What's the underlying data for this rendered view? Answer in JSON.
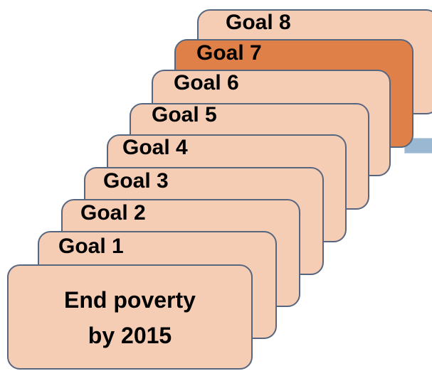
{
  "goals": [
    {
      "label": "Goal 1"
    },
    {
      "label": "Goal 2"
    },
    {
      "label": "Goal 3"
    },
    {
      "label": "Goal 4"
    },
    {
      "label": "Goal 5"
    },
    {
      "label": "Goal 6"
    },
    {
      "label": "Goal 7",
      "highlighted": true
    },
    {
      "label": "Goal 8"
    }
  ],
  "front_card": {
    "line1": "End poverty",
    "line2": "by 2015"
  },
  "colors": {
    "card_fill": "#f5cdb5",
    "highlight_fill": "#df8049",
    "border": "#56667f",
    "connector": "#9bb8d3"
  }
}
